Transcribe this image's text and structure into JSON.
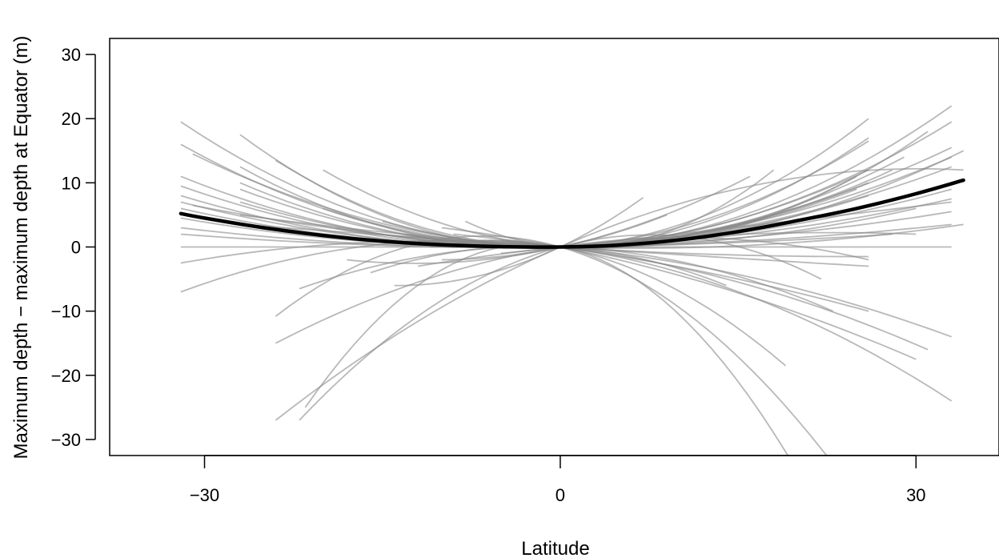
{
  "chart_data": {
    "type": "line",
    "title": "",
    "xlabel": "Latitude",
    "ylabel": "Maximum depth − maximum depth at Equator (m)",
    "xlim": [
      -38,
      37
    ],
    "ylim": [
      -32.5,
      32.5
    ],
    "xticks": [
      -30,
      0,
      30
    ],
    "yticks": [
      -30,
      -20,
      -10,
      0,
      10,
      20,
      30
    ],
    "xtick_labels": [
      "−30",
      "0",
      "30"
    ],
    "ytick_labels": [
      "−30",
      "−20",
      "−10",
      "0",
      "10",
      "20",
      "30"
    ],
    "grid": false,
    "legend": "none",
    "colors": {
      "overall": "#000000",
      "individual": "#888888"
    },
    "overall_fit": {
      "name": "",
      "x": [
        -32,
        -30,
        -25,
        -20,
        -15,
        -10,
        -5,
        0,
        5,
        10,
        15,
        20,
        25,
        30,
        34
      ],
      "y": [
        5.2,
        4.5,
        3.0,
        1.8,
        0.9,
        0.35,
        0.05,
        0,
        0.3,
        1.1,
        2.4,
        4.1,
        6.0,
        8.3,
        10.4
      ]
    },
    "series": [
      {
        "x": [
          -32,
          0,
          33
        ],
        "y": [
          19.5,
          0,
          22
        ]
      },
      {
        "x": [
          -32,
          0,
          33
        ],
        "y": [
          16,
          0,
          19.5
        ]
      },
      {
        "x": [
          -32,
          0,
          33
        ],
        "y": [
          11,
          0,
          15.5
        ]
      },
      {
        "x": [
          -32,
          0,
          33
        ],
        "y": [
          9.5,
          0,
          14
        ]
      },
      {
        "x": [
          -32,
          0,
          33
        ],
        "y": [
          8,
          0,
          12.5
        ]
      },
      {
        "x": [
          -32,
          0,
          33
        ],
        "y": [
          7,
          0,
          10
        ]
      },
      {
        "x": [
          -32,
          0,
          33
        ],
        "y": [
          6,
          0,
          9
        ]
      },
      {
        "x": [
          -32,
          0,
          33
        ],
        "y": [
          4.5,
          0,
          7.5
        ]
      },
      {
        "x": [
          -32,
          0,
          33
        ],
        "y": [
          3,
          0,
          5.5
        ]
      },
      {
        "x": [
          -32,
          0,
          33
        ],
        "y": [
          2,
          0,
          3.5
        ]
      },
      {
        "x": [
          -32,
          0,
          33
        ],
        "y": [
          0,
          0,
          0
        ]
      },
      {
        "x": [
          -32,
          0,
          33
        ],
        "y": [
          -2.5,
          0,
          -14
        ]
      },
      {
        "x": [
          -32,
          0,
          33
        ],
        "y": [
          -7,
          0,
          -24
        ]
      },
      {
        "x": [
          -31,
          0,
          34
        ],
        "y": [
          14.5,
          0,
          15
        ]
      },
      {
        "x": [
          -31,
          0,
          34
        ],
        "y": [
          6.5,
          0,
          3.5
        ]
      },
      {
        "x": [
          -27,
          0,
          26
        ],
        "y": [
          17.5,
          0,
          20
        ]
      },
      {
        "x": [
          -27,
          0,
          26
        ],
        "y": [
          12.5,
          0,
          16.5
        ]
      },
      {
        "x": [
          -27,
          0,
          26
        ],
        "y": [
          10,
          0,
          12
        ]
      },
      {
        "x": [
          -27,
          0,
          26
        ],
        "y": [
          9,
          0,
          10
        ]
      },
      {
        "x": [
          -27,
          0,
          26
        ],
        "y": [
          7,
          0,
          8
        ]
      },
      {
        "x": [
          -27,
          0,
          26
        ],
        "y": [
          5,
          0,
          -1.5
        ]
      },
      {
        "x": [
          -27,
          0,
          26
        ],
        "y": [
          3.5,
          0,
          -3
        ]
      },
      {
        "x": [
          -24,
          0,
          26
        ],
        "y": [
          13.5,
          0,
          17
        ]
      },
      {
        "x": [
          -24,
          0,
          26
        ],
        "y": [
          -15,
          0,
          -2
        ]
      },
      {
        "x": [
          -22,
          0,
          22
        ],
        "y": [
          -27,
          0,
          -5
        ]
      },
      {
        "x": [
          -24,
          0,
          34
        ],
        "y": [
          -27,
          0,
          12
        ]
      },
      {
        "x": [
          -21.5,
          0,
          20
        ],
        "y": [
          -25,
          0,
          -35
        ]
      },
      {
        "x": [
          -24,
          0,
          23.5
        ],
        "y": [
          -10.8,
          0,
          -35
        ]
      },
      {
        "x": [
          -22,
          0,
          23
        ],
        "y": [
          -6.5,
          0,
          -10
        ]
      },
      {
        "x": [
          -18,
          0,
          16
        ],
        "y": [
          -2,
          0,
          11
        ]
      },
      {
        "x": [
          -16,
          0,
          14
        ],
        "y": [
          -4,
          0,
          -6
        ]
      },
      {
        "x": [
          -14,
          0,
          7
        ],
        "y": [
          -6,
          0,
          7.7
        ]
      },
      {
        "x": [
          -10,
          0,
          9
        ],
        "y": [
          -2,
          0,
          5
        ]
      },
      {
        "x": [
          -8,
          0,
          18
        ],
        "y": [
          4,
          0,
          12
        ]
      },
      {
        "x": [
          -20,
          0,
          31
        ],
        "y": [
          12,
          0,
          18
        ]
      },
      {
        "x": [
          -20,
          0,
          28
        ],
        "y": [
          6,
          0,
          12
        ]
      },
      {
        "x": [
          -19,
          0,
          30
        ],
        "y": [
          3,
          0,
          6
        ]
      },
      {
        "x": [
          -15,
          0,
          29
        ],
        "y": [
          4,
          0,
          14
        ]
      },
      {
        "x": [
          -13,
          0,
          25
        ],
        "y": [
          2,
          0,
          9
        ]
      },
      {
        "x": [
          -12,
          0,
          31
        ],
        "y": [
          1,
          0,
          9
        ]
      },
      {
        "x": [
          -12,
          0,
          30
        ],
        "y": [
          -3,
          0,
          2
        ]
      },
      {
        "x": [
          -10,
          0,
          30
        ],
        "y": [
          3,
          0,
          -17.5
        ]
      },
      {
        "x": [
          -6,
          0,
          31
        ],
        "y": [
          1,
          0,
          -16
        ]
      },
      {
        "x": [
          -5,
          0,
          33
        ],
        "y": [
          -1,
          0,
          7
        ]
      },
      {
        "x": [
          -9,
          0,
          26
        ],
        "y": [
          2,
          0,
          -10
        ]
      },
      {
        "x": [
          -7,
          0,
          19
        ],
        "y": [
          1,
          0,
          -18.5
        ]
      },
      {
        "x": [
          -5,
          0,
          25
        ],
        "y": [
          1,
          0,
          11
        ]
      },
      {
        "x": [
          -11,
          0,
          28
        ],
        "y": [
          0,
          0,
          2
        ]
      }
    ]
  }
}
